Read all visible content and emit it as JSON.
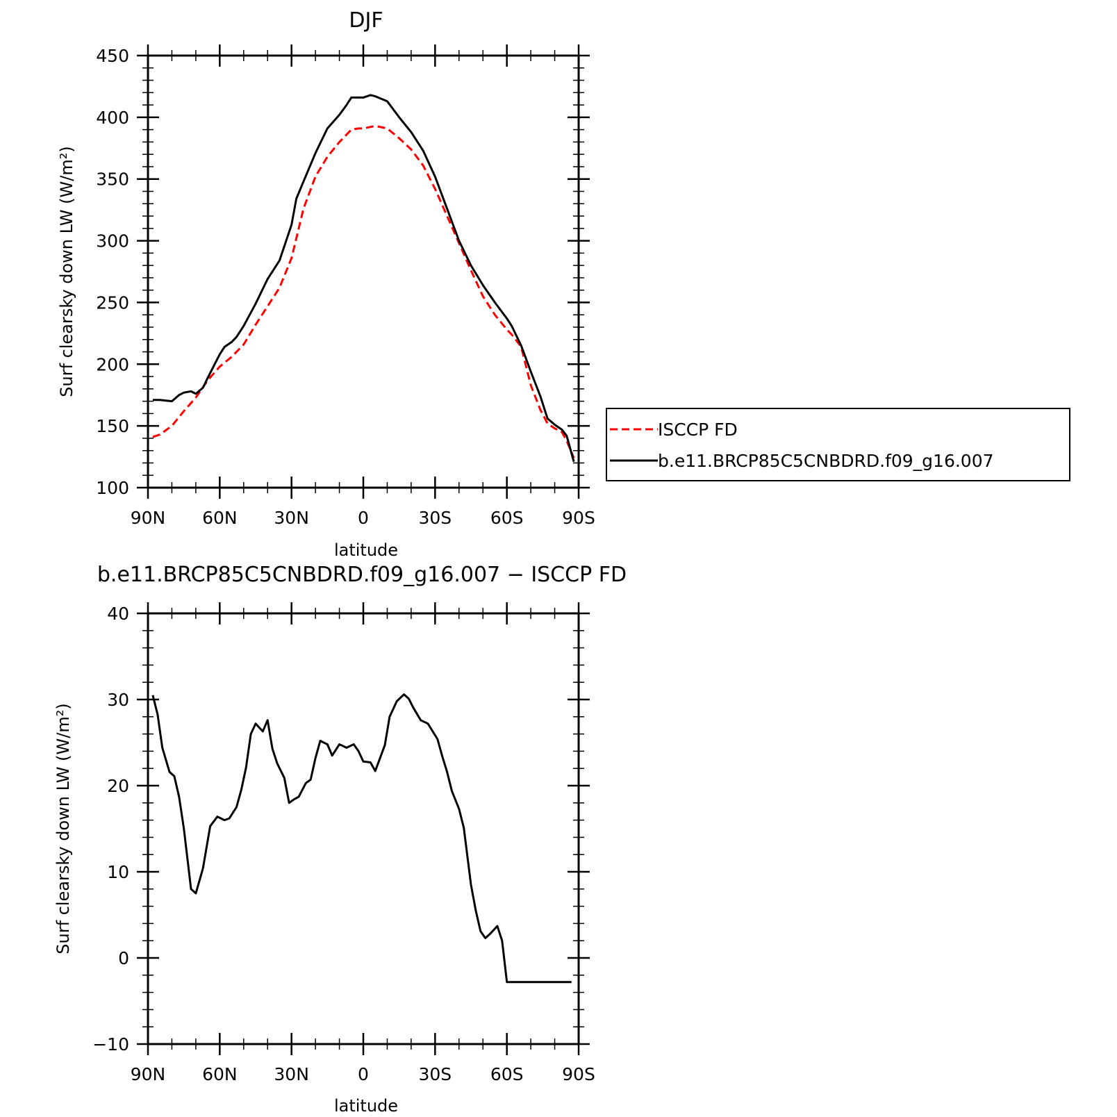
{
  "chart_data": [
    {
      "type": "line",
      "title": "DJF",
      "xlabel": "latitude",
      "ylabel": "Surf clearsky down LW (W/m²)",
      "xlim": [
        90,
        -90
      ],
      "ylim": [
        100,
        450
      ],
      "xticks": [
        90,
        60,
        30,
        0,
        -30,
        -60,
        -90
      ],
      "xtick_labels": [
        "90N",
        "60N",
        "30N",
        "0",
        "30S",
        "60S",
        "90S"
      ],
      "yticks": [
        100,
        150,
        200,
        250,
        300,
        350,
        400,
        450
      ],
      "ytick_labels": [
        "100",
        "150",
        "200",
        "250",
        "300",
        "350",
        "400",
        "450"
      ],
      "legend_position": "right",
      "series": [
        {
          "name": "ISCCP FD",
          "color": "#ff0000",
          "dash": "dashed",
          "x": [
            88,
            85,
            80,
            75,
            70,
            65,
            60,
            55,
            50,
            45,
            40,
            35,
            30,
            28,
            25,
            20,
            15,
            10,
            5,
            2,
            0,
            -5,
            -10,
            -15,
            -20,
            -25,
            -30,
            -35,
            -40,
            -45,
            -50,
            -55,
            -60,
            -62,
            -66,
            -70,
            -74,
            -77,
            -80,
            -83,
            -85,
            -88
          ],
          "y": [
            141,
            143,
            150,
            162,
            173,
            187,
            198,
            206,
            216,
            232,
            247,
            262,
            286,
            302,
            326,
            352,
            368,
            380,
            390,
            391,
            391,
            393,
            391,
            383,
            374,
            361,
            342,
            320,
            298,
            276,
            255,
            240,
            228,
            224,
            214,
            183,
            163,
            152,
            148,
            145,
            138,
            124
          ]
        },
        {
          "name": "b.e11.BRCP85C5CNBDRD.f09_g16.007",
          "color": "#000000",
          "dash": "solid",
          "x": [
            88,
            85,
            80,
            77,
            75,
            72,
            70,
            67,
            65,
            60,
            58,
            55,
            53,
            50,
            45,
            40,
            35,
            30,
            28,
            25,
            20,
            15,
            10,
            7,
            5,
            2,
            0,
            -3,
            -5,
            -10,
            -15,
            -20,
            -25,
            -30,
            -35,
            -40,
            -45,
            -50,
            -55,
            -60,
            -62,
            -66,
            -70,
            -74,
            -77,
            -80,
            -83,
            -85,
            -88
          ],
          "y": [
            171,
            171,
            170,
            175,
            177,
            178,
            176,
            181,
            189,
            208,
            214,
            218,
            222,
            231,
            249,
            269,
            284,
            313,
            334,
            348,
            371,
            391,
            402,
            410,
            416,
            416,
            416,
            418,
            417,
            413,
            400,
            388,
            373,
            352,
            326,
            300,
            280,
            264,
            250,
            237,
            231,
            215,
            194,
            174,
            156,
            151,
            147,
            142,
            121
          ]
        }
      ]
    },
    {
      "type": "line",
      "title": "b.e11.BRCP85C5CNBDRD.f09_g16.007 − ISCCP FD",
      "xlabel": "latitude",
      "ylabel": "Surf clearsky down LW (W/m²)",
      "xlim": [
        90,
        -90
      ],
      "ylim": [
        -10,
        40
      ],
      "xticks": [
        90,
        60,
        30,
        0,
        -30,
        -60,
        -90
      ],
      "xtick_labels": [
        "90N",
        "60N",
        "30N",
        "0",
        "30S",
        "60S",
        "90S"
      ],
      "yticks": [
        -10,
        0,
        10,
        20,
        30,
        40
      ],
      "ytick_labels": [
        "−10",
        "0",
        "10",
        "20",
        "30",
        "40"
      ],
      "series": [
        {
          "color": "#000000",
          "dash": "solid",
          "x": [
            88,
            86,
            84,
            81,
            79,
            77,
            75,
            72,
            70,
            67,
            64,
            61,
            58,
            56,
            53,
            51,
            49,
            47,
            45,
            42,
            40,
            38,
            36,
            33,
            31,
            29,
            27,
            24,
            22,
            20,
            18,
            15,
            13,
            10,
            7,
            4,
            2,
            0,
            -3,
            -5,
            -7,
            -9,
            -11,
            -14,
            -17,
            -19,
            -21,
            -24,
            -27,
            -29,
            -31,
            -33,
            -35,
            -37,
            -40,
            -42,
            -45,
            -47,
            -49,
            -51,
            -53,
            -56,
            -58,
            -60,
            -62,
            -64,
            -66,
            -68,
            -70,
            -72,
            -74,
            -76,
            -78,
            -80,
            -82,
            -84,
            -87
          ],
          "y": [
            30.5,
            28.3,
            24.4,
            21.6,
            21.1,
            18.7,
            15.0,
            8.0,
            7.5,
            10.4,
            15.3,
            16.4,
            16.0,
            16.2,
            17.5,
            19.5,
            22.1,
            26.0,
            27.2,
            26.3,
            27.6,
            24.3,
            22.6,
            20.9,
            18.0,
            18.4,
            18.7,
            20.3,
            20.7,
            23.2,
            25.2,
            24.8,
            23.5,
            24.8,
            24.4,
            24.8,
            24.0,
            22.8,
            22.7,
            21.7,
            23.2,
            24.7,
            28.0,
            29.8,
            30.6,
            30.1,
            29.0,
            27.6,
            27.2,
            26.3,
            25.4,
            23.4,
            21.6,
            19.4,
            17.3,
            15.1,
            8.5,
            5.5,
            3.1,
            2.3,
            2.8,
            3.7,
            2.0,
            -2.8,
            -2.8,
            -2.8,
            -2.8,
            -2.8,
            -2.8,
            -2.8,
            -2.8,
            -2.8,
            -2.8,
            -2.8,
            -2.8,
            -2.8,
            -2.8
          ]
        }
      ]
    }
  ]
}
